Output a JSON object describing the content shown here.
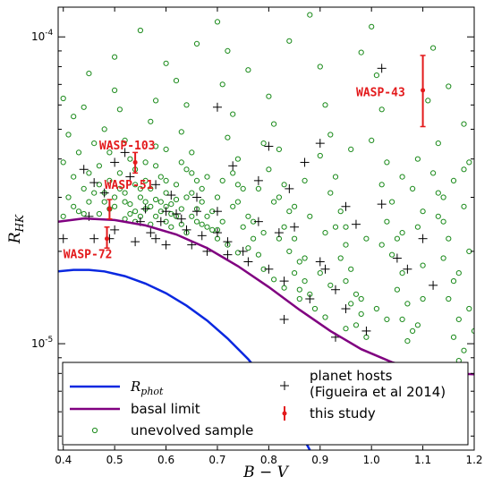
{
  "chart_data": {
    "type": "scatter",
    "title": "",
    "xlabel": "B − V",
    "ylabel_base": "R",
    "ylabel_sub": "HK",
    "xlim": [
      0.39,
      1.2
    ],
    "ylim": [
      4.5e-06,
      0.000125
    ],
    "yscale": "log",
    "grid": false,
    "legend_position": "bottom",
    "x_ticks": [
      0.4,
      0.5,
      0.6,
      0.7,
      0.8,
      0.9,
      1.0,
      1.1,
      1.2
    ],
    "x_tick_labels": [
      "0.4",
      "0.5",
      "0.6",
      "0.7",
      "0.8",
      "0.9",
      "1.0",
      "1.1",
      "1.2"
    ],
    "y_ticks": [
      1e-05,
      0.0001
    ],
    "y_tick_labels": [
      {
        "base": "10",
        "exp": "-5"
      },
      {
        "base": "10",
        "exp": "-4"
      }
    ],
    "colors": {
      "rphot": "#0a28e0",
      "basal": "#800080",
      "sample": "#1a8a1a",
      "hosts": "#000000",
      "study": "#e31a1c"
    },
    "legend": {
      "rphot_base": "R",
      "rphot_sub": "phot",
      "basal": "basal limit",
      "sample": "unevolved sample",
      "hosts_line1": "planet hosts",
      "hosts_line2": "(Figueira et al 2014)",
      "study": "this study"
    },
    "rphot_curve": [
      [
        0.39,
        1.72e-05
      ],
      [
        0.42,
        1.74e-05
      ],
      [
        0.45,
        1.74e-05
      ],
      [
        0.48,
        1.72e-05
      ],
      [
        0.52,
        1.66e-05
      ],
      [
        0.56,
        1.57e-05
      ],
      [
        0.6,
        1.46e-05
      ],
      [
        0.64,
        1.33e-05
      ],
      [
        0.68,
        1.19e-05
      ],
      [
        0.72,
        1.04e-05
      ],
      [
        0.76,
        8.9e-06
      ],
      [
        0.8,
        7.4e-06
      ],
      [
        0.84,
        5.9e-06
      ],
      [
        0.86,
        5.2e-06
      ],
      [
        0.88,
        4.5e-06
      ]
    ],
    "basal_curve": [
      [
        0.39,
        2.5e-05
      ],
      [
        0.44,
        2.56e-05
      ],
      [
        0.5,
        2.53e-05
      ],
      [
        0.56,
        2.43e-05
      ],
      [
        0.62,
        2.27e-05
      ],
      [
        0.68,
        2.05e-05
      ],
      [
        0.74,
        1.79e-05
      ],
      [
        0.8,
        1.53e-05
      ],
      [
        0.86,
        1.29e-05
      ],
      [
        0.92,
        1.1e-05
      ],
      [
        0.98,
        9.6e-06
      ],
      [
        1.04,
        8.7e-06
      ],
      [
        1.1,
        8.2e-06
      ],
      [
        1.16,
        8e-06
      ],
      [
        1.2,
        7.95e-06
      ]
    ],
    "sample_points": [
      [
        0.4,
        6.3e-05
      ],
      [
        0.42,
        5.5e-05
      ],
      [
        0.41,
        4.8e-05
      ],
      [
        0.43,
        4.2e-05
      ],
      [
        0.4,
        3.9e-05
      ],
      [
        0.42,
        3.5e-05
      ],
      [
        0.44,
        3.2e-05
      ],
      [
        0.41,
        3e-05
      ],
      [
        0.45,
        2.9e-05
      ],
      [
        0.43,
        2.7e-05
      ],
      [
        0.4,
        2.6e-05
      ],
      [
        0.46,
        4.5e-05
      ],
      [
        0.48,
        5e-05
      ],
      [
        0.47,
        3.8e-05
      ],
      [
        0.49,
        3.4e-05
      ],
      [
        0.46,
        3.1e-05
      ],
      [
        0.48,
        2.9e-05
      ],
      [
        0.5,
        2.8e-05
      ],
      [
        0.47,
        2.65e-05
      ],
      [
        0.5,
        6.7e-05
      ],
      [
        0.51,
        5.8e-05
      ],
      [
        0.52,
        4.6e-05
      ],
      [
        0.53,
        4e-05
      ],
      [
        0.51,
        3.6e-05
      ],
      [
        0.54,
        3.3e-05
      ],
      [
        0.52,
        3.1e-05
      ],
      [
        0.55,
        3e-05
      ],
      [
        0.53,
        2.85e-05
      ],
      [
        0.56,
        2.75e-05
      ],
      [
        0.55,
        2.6e-05
      ],
      [
        0.57,
        5.3e-05
      ],
      [
        0.58,
        4.4e-05
      ],
      [
        0.56,
        3.9e-05
      ],
      [
        0.59,
        3.5e-05
      ],
      [
        0.57,
        3.2e-05
      ],
      [
        0.6,
        3.1e-05
      ],
      [
        0.58,
        2.95e-05
      ],
      [
        0.61,
        2.85e-05
      ],
      [
        0.59,
        2.7e-05
      ],
      [
        0.62,
        2.6e-05
      ],
      [
        0.6,
        2.5e-05
      ],
      [
        0.63,
        2.45e-05
      ],
      [
        0.55,
        0.000105
      ],
      [
        0.6,
        8.2e-05
      ],
      [
        0.62,
        7.2e-05
      ],
      [
        0.64,
        6e-05
      ],
      [
        0.63,
        4.9e-05
      ],
      [
        0.65,
        4.2e-05
      ],
      [
        0.64,
        3.7e-05
      ],
      [
        0.66,
        3.4e-05
      ],
      [
        0.65,
        3.1e-05
      ],
      [
        0.67,
        2.9e-05
      ],
      [
        0.66,
        2.75e-05
      ],
      [
        0.68,
        2.6e-05
      ],
      [
        0.67,
        2.45e-05
      ],
      [
        0.69,
        2.35e-05
      ],
      [
        0.7,
        0.000112
      ],
      [
        0.72,
        9e-05
      ],
      [
        0.71,
        7e-05
      ],
      [
        0.73,
        5.6e-05
      ],
      [
        0.72,
        4.7e-05
      ],
      [
        0.74,
        4e-05
      ],
      [
        0.73,
        3.6e-05
      ],
      [
        0.75,
        3.2e-05
      ],
      [
        0.74,
        2.9e-05
      ],
      [
        0.76,
        2.6e-05
      ],
      [
        0.75,
        2.4e-05
      ],
      [
        0.77,
        2.2e-05
      ],
      [
        0.76,
        2.05e-05
      ],
      [
        0.78,
        1.95e-05
      ],
      [
        0.8,
        6.4e-05
      ],
      [
        0.81,
        5.2e-05
      ],
      [
        0.82,
        4.3e-05
      ],
      [
        0.8,
        3.7e-05
      ],
      [
        0.83,
        3.3e-05
      ],
      [
        0.82,
        3e-05
      ],
      [
        0.84,
        2.7e-05
      ],
      [
        0.83,
        2.4e-05
      ],
      [
        0.85,
        2.2e-05
      ],
      [
        0.84,
        2e-05
      ],
      [
        0.86,
        1.85e-05
      ],
      [
        0.85,
        1.7e-05
      ],
      [
        0.87,
        1.6e-05
      ],
      [
        0.86,
        1.5e-05
      ],
      [
        0.88,
        1.45e-05
      ],
      [
        0.88,
        0.000118
      ],
      [
        0.9,
        8e-05
      ],
      [
        0.91,
        6e-05
      ],
      [
        0.92,
        4.8e-05
      ],
      [
        0.9,
        4.1e-05
      ],
      [
        0.93,
        3.5e-05
      ],
      [
        0.92,
        3.1e-05
      ],
      [
        0.94,
        2.7e-05
      ],
      [
        0.93,
        2.4e-05
      ],
      [
        0.95,
        2.1e-05
      ],
      [
        0.94,
        1.9e-05
      ],
      [
        0.96,
        1.75e-05
      ],
      [
        0.95,
        1.6e-05
      ],
      [
        0.97,
        1.45e-05
      ],
      [
        0.96,
        1.35e-05
      ],
      [
        0.98,
        1.25e-05
      ],
      [
        0.97,
        1.15e-05
      ],
      [
        1.0,
        0.000108
      ],
      [
        1.01,
        7.5e-05
      ],
      [
        1.02,
        5.8e-05
      ],
      [
        1.0,
        4.6e-05
      ],
      [
        1.03,
        3.9e-05
      ],
      [
        1.02,
        3.3e-05
      ],
      [
        1.04,
        2.9e-05
      ],
      [
        1.03,
        2.5e-05
      ],
      [
        1.05,
        2.2e-05
      ],
      [
        1.04,
        1.95e-05
      ],
      [
        1.06,
        1.7e-05
      ],
      [
        1.05,
        1.5e-05
      ],
      [
        1.07,
        1.35e-05
      ],
      [
        1.06,
        1.2e-05
      ],
      [
        1.08,
        1.1e-05
      ],
      [
        1.07,
        1.02e-05
      ],
      [
        1.12,
        9.2e-05
      ],
      [
        1.11,
        6.2e-05
      ],
      [
        1.13,
        4.5e-05
      ],
      [
        1.12,
        3.6e-05
      ],
      [
        1.14,
        3e-05
      ],
      [
        1.13,
        2.6e-05
      ],
      [
        1.15,
        2.2e-05
      ],
      [
        1.14,
        1.9e-05
      ],
      [
        1.16,
        1.6e-05
      ],
      [
        1.15,
        1.4e-05
      ],
      [
        1.17,
        1.2e-05
      ],
      [
        1.16,
        1.05e-05
      ],
      [
        1.18,
        9.5e-06
      ],
      [
        1.17,
        8.8e-06
      ],
      [
        1.19,
        3.9e-05
      ],
      [
        1.18,
        2.8e-05
      ],
      [
        1.19,
        2e-05
      ],
      [
        1.19,
        1.3e-05
      ],
      [
        0.52,
        2.55e-05
      ],
      [
        0.54,
        2.5e-05
      ],
      [
        0.57,
        2.45e-05
      ],
      [
        0.61,
        2.4e-05
      ],
      [
        0.64,
        2.3e-05
      ],
      [
        0.7,
        2.2e-05
      ],
      [
        0.72,
        2.1e-05
      ],
      [
        0.74,
        1.98e-05
      ],
      [
        0.79,
        1.75e-05
      ],
      [
        0.81,
        1.62e-05
      ],
      [
        0.83,
        1.52e-05
      ],
      [
        0.86,
        1.4e-05
      ],
      [
        0.89,
        1.3e-05
      ],
      [
        0.91,
        1.22e-05
      ],
      [
        0.95,
        1.12e-05
      ],
      [
        0.99,
        1.05e-05
      ],
      [
        0.6,
        2.8e-05
      ],
      [
        0.62,
        2.95e-05
      ],
      [
        0.58,
        2.6e-05
      ],
      [
        0.63,
        2.75e-05
      ],
      [
        0.61,
        2.65e-05
      ],
      [
        0.65,
        2.6e-05
      ],
      [
        0.66,
        2.5e-05
      ],
      [
        0.68,
        2.4e-05
      ],
      [
        0.7,
        2.35e-05
      ],
      [
        0.71,
        2.5e-05
      ],
      [
        0.69,
        2.7e-05
      ],
      [
        0.56,
        2.9e-05
      ],
      [
        0.54,
        2.7e-05
      ],
      [
        0.53,
        2.65e-05
      ],
      [
        0.59,
        2.9e-05
      ],
      [
        0.57,
        2.8e-05
      ],
      [
        0.55,
        3.2e-05
      ],
      [
        0.6,
        3.4e-05
      ],
      [
        0.62,
        3.3e-05
      ],
      [
        0.64,
        3e-05
      ],
      [
        0.67,
        3.2e-05
      ],
      [
        0.7,
        3e-05
      ],
      [
        0.73,
        2.8e-05
      ],
      [
        0.77,
        2.5e-05
      ],
      [
        0.79,
        2.3e-05
      ],
      [
        0.82,
        2.2e-05
      ],
      [
        0.87,
        1.9e-05
      ],
      [
        0.9,
        1.7e-05
      ],
      [
        0.92,
        1.55e-05
      ],
      [
        0.98,
        1.4e-05
      ],
      [
        1.01,
        1.3e-05
      ],
      [
        1.03,
        1.2e-05
      ],
      [
        1.09,
        1.15e-05
      ],
      [
        1.1,
        1.4e-05
      ],
      [
        1.1,
        1.8e-05
      ],
      [
        1.09,
        2.4e-05
      ],
      [
        1.08,
        3.2e-05
      ],
      [
        1.09,
        4e-05
      ],
      [
        0.44,
        5.9e-05
      ],
      [
        0.45,
        7.6e-05
      ],
      [
        0.5,
        8.6e-05
      ],
      [
        0.58,
        6.2e-05
      ],
      [
        0.66,
        9.5e-05
      ],
      [
        0.76,
        7.8e-05
      ],
      [
        0.84,
        9.7e-05
      ],
      [
        0.98,
        8.9e-05
      ],
      [
        1.15,
        6.9e-05
      ],
      [
        1.18,
        5.2e-05
      ],
      [
        0.79,
        4.5e-05
      ],
      [
        0.87,
        3.4e-05
      ],
      [
        0.96,
        4.3e-05
      ],
      [
        1.06,
        3.5e-05
      ],
      [
        1.14,
        2.5e-05
      ],
      [
        1.17,
        1.7e-05
      ],
      [
        1.2,
        1.1e-05
      ],
      [
        0.42,
        2.8e-05
      ],
      [
        0.44,
        2.65e-05
      ],
      [
        0.45,
        3.6e-05
      ],
      [
        0.49,
        4.2e-05
      ],
      [
        0.51,
        3.2e-05
      ],
      [
        0.47,
        3.3e-05
      ],
      [
        0.48,
        3.1e-05
      ],
      [
        0.5,
        3e-05
      ],
      [
        0.49,
        2.75e-05
      ],
      [
        0.52,
        2.9e-05
      ],
      [
        0.54,
        3.7e-05
      ],
      [
        0.56,
        3.4e-05
      ],
      [
        0.58,
        3.8e-05
      ],
      [
        0.6,
        4.3e-05
      ],
      [
        0.63,
        3.9e-05
      ],
      [
        0.65,
        3.6e-05
      ],
      [
        0.68,
        3.5e-05
      ],
      [
        0.71,
        3.4e-05
      ],
      [
        0.74,
        3.3e-05
      ],
      [
        0.78,
        3.2e-05
      ],
      [
        0.81,
        2.9e-05
      ],
      [
        0.85,
        2.8e-05
      ],
      [
        0.88,
        2.6e-05
      ],
      [
        0.91,
        2.3e-05
      ],
      [
        0.95,
        2.4e-05
      ],
      [
        0.99,
        2.2e-05
      ],
      [
        1.02,
        2.1e-05
      ],
      [
        1.06,
        2.3e-05
      ],
      [
        1.1,
        2.7e-05
      ],
      [
        1.13,
        3.1e-05
      ],
      [
        1.16,
        3.4e-05
      ],
      [
        1.18,
        3.7e-05
      ]
    ],
    "planet_hosts": [
      [
        0.4,
        2.2e-05
      ],
      [
        0.44,
        3.7e-05
      ],
      [
        0.46,
        2.2e-05
      ],
      [
        0.45,
        2.6e-05
      ],
      [
        0.48,
        3.1e-05
      ],
      [
        0.49,
        2.2e-05
      ],
      [
        0.5,
        2.35e-05
      ],
      [
        0.52,
        4.2e-05
      ],
      [
        0.54,
        2.15e-05
      ],
      [
        0.55,
        2.5e-05
      ],
      [
        0.56,
        2.75e-05
      ],
      [
        0.57,
        2.3e-05
      ],
      [
        0.58,
        3.3e-05
      ],
      [
        0.59,
        2.5e-05
      ],
      [
        0.6,
        2.7e-05
      ],
      [
        0.6,
        2.1e-05
      ],
      [
        0.62,
        2.65e-05
      ],
      [
        0.63,
        2.55e-05
      ],
      [
        0.64,
        2.35e-05
      ],
      [
        0.65,
        2.1e-05
      ],
      [
        0.66,
        2.7e-05
      ],
      [
        0.66,
        3e-05
      ],
      [
        0.67,
        2.25e-05
      ],
      [
        0.68,
        2e-05
      ],
      [
        0.7,
        5.9e-05
      ],
      [
        0.7,
        2.3e-05
      ],
      [
        0.72,
        2.15e-05
      ],
      [
        0.72,
        1.95e-05
      ],
      [
        0.73,
        3.8e-05
      ],
      [
        0.75,
        2e-05
      ],
      [
        0.76,
        1.85e-05
      ],
      [
        0.78,
        3.4e-05
      ],
      [
        0.78,
        2.5e-05
      ],
      [
        0.8,
        1.75e-05
      ],
      [
        0.8,
        4.4e-05
      ],
      [
        0.82,
        2.3e-05
      ],
      [
        0.83,
        1.6e-05
      ],
      [
        0.83,
        1.2e-05
      ],
      [
        0.84,
        3.2e-05
      ],
      [
        0.85,
        2.4e-05
      ],
      [
        0.87,
        3.9e-05
      ],
      [
        0.88,
        1.4e-05
      ],
      [
        0.9,
        4.5e-05
      ],
      [
        0.9,
        1.85e-05
      ],
      [
        0.91,
        1.75e-05
      ],
      [
        0.93,
        1.5e-05
      ],
      [
        0.93,
        1.05e-05
      ],
      [
        0.95,
        2.8e-05
      ],
      [
        0.95,
        1.3e-05
      ],
      [
        0.97,
        2.45e-05
      ],
      [
        0.99,
        1.1e-05
      ],
      [
        1.02,
        2.85e-05
      ],
      [
        1.02,
        7.9e-05
      ],
      [
        1.05,
        1.9e-05
      ],
      [
        1.07,
        1.75e-05
      ],
      [
        1.1,
        2.2e-05
      ],
      [
        1.12,
        1.55e-05
      ],
      [
        0.5,
        3.9e-05
      ],
      [
        0.53,
        3.5e-05
      ],
      [
        0.46,
        3.35e-05
      ],
      [
        0.58,
        2.2e-05
      ],
      [
        0.61,
        3.05e-05
      ],
      [
        0.7,
        2.7e-05
      ]
    ],
    "this_study": [
      {
        "name": "WASP-43",
        "x": 1.1,
        "y": 6.7e-05,
        "ylo": 5.1e-05,
        "yhi": 8.7e-05,
        "label_x": 0.97,
        "label_y": 6.4e-05
      },
      {
        "name": "WASP-103",
        "x": 0.54,
        "y": 3.9e-05,
        "ylo": 3.6e-05,
        "yhi": 4.2e-05,
        "label_x": 0.47,
        "label_y": 4.3e-05
      },
      {
        "name": "WASP-51",
        "x": 0.49,
        "y": 2.75e-05,
        "ylo": 2.55e-05,
        "yhi": 2.95e-05,
        "label_x": 0.48,
        "label_y": 3.2e-05
      },
      {
        "name": "WASP-72",
        "x": 0.485,
        "y": 2.2e-05,
        "ylo": 2.05e-05,
        "yhi": 2.4e-05,
        "label_x": 0.4,
        "label_y": 1.9e-05
      }
    ]
  }
}
